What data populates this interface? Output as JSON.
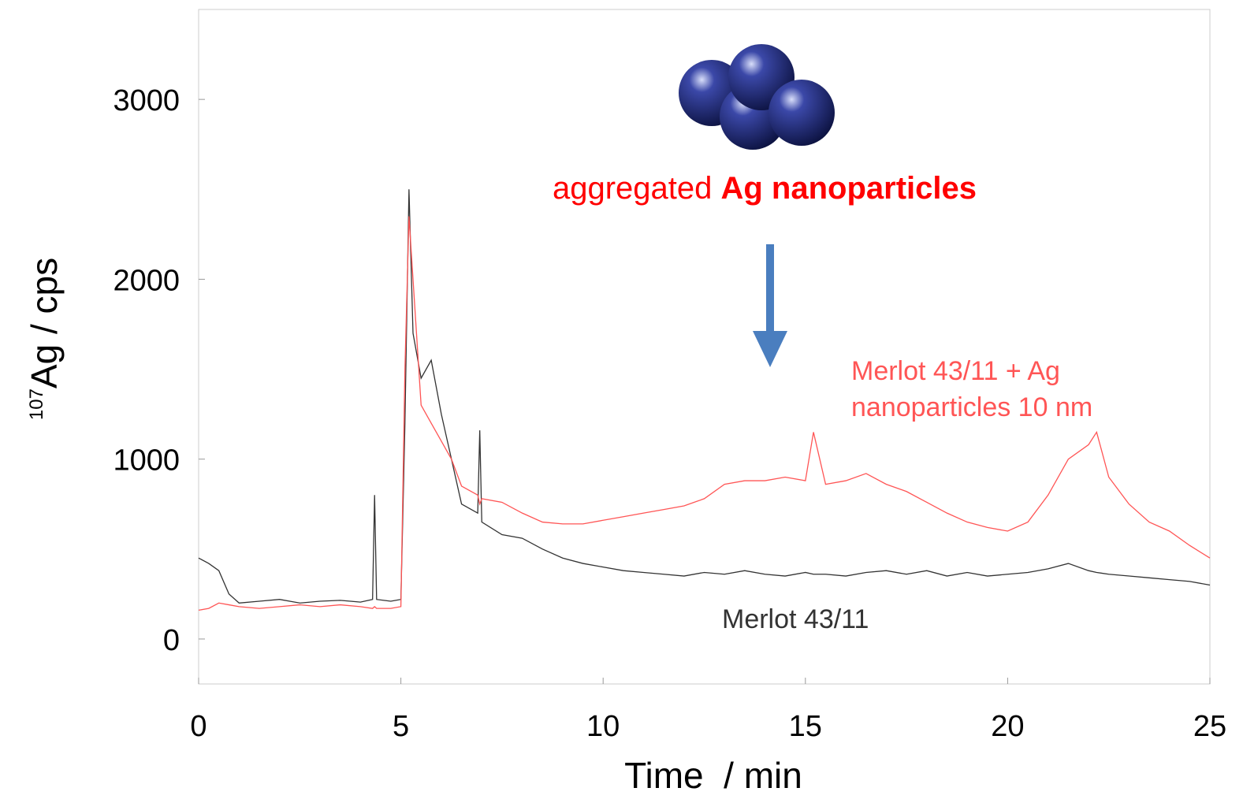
{
  "chart_data": {
    "type": "line",
    "annotation": "aggregated",
    "annotation_bold": "Ag nanoparticles",
    "x_label": "Time  / min",
    "y_label_sup": "107",
    "y_label": "Ag / cps",
    "x": [
      0,
      0.25,
      0.5,
      0.75,
      1,
      1.5,
      2,
      2.5,
      3,
      3.5,
      4,
      4.3,
      4.35,
      4.4,
      4.75,
      5,
      5.1,
      5.2,
      5.3,
      5.5,
      5.75,
      6,
      6.25,
      6.5,
      6.9,
      6.95,
      7,
      7.5,
      8,
      8.5,
      9,
      9.5,
      10,
      10.5,
      11,
      11.5,
      12,
      12.5,
      13,
      13.5,
      14,
      14.5,
      15,
      15.2,
      15.5,
      16,
      16.5,
      17,
      17.5,
      18,
      18.5,
      19,
      19.5,
      20,
      20.5,
      21,
      21.5,
      22,
      22.2,
      22.5,
      23,
      23.5,
      24,
      24.5,
      25
    ],
    "series": [
      {
        "name": "Merlot 43/11",
        "color": "#333333",
        "values": [
          450,
          420,
          380,
          250,
          200,
          210,
          220,
          200,
          210,
          215,
          205,
          220,
          800,
          220,
          210,
          220,
          1200,
          2500,
          1700,
          1450,
          1550,
          1250,
          1000,
          750,
          700,
          1160,
          650,
          580,
          560,
          500,
          450,
          420,
          400,
          380,
          370,
          360,
          350,
          370,
          360,
          380,
          360,
          350,
          370,
          360,
          360,
          350,
          370,
          380,
          360,
          380,
          350,
          370,
          350,
          360,
          370,
          390,
          420,
          380,
          370,
          360,
          350,
          340,
          330,
          320,
          300
        ]
      },
      {
        "name": "Merlot 43/11 + Ag nanoparticles 10 nm",
        "color": "#ff5555",
        "values": [
          160,
          170,
          200,
          190,
          180,
          170,
          180,
          190,
          180,
          190,
          180,
          170,
          180,
          170,
          170,
          180,
          1500,
          2350,
          2000,
          1300,
          1200,
          1100,
          1000,
          850,
          800,
          750,
          780,
          760,
          700,
          650,
          640,
          640,
          660,
          680,
          700,
          720,
          740,
          780,
          860,
          880,
          880,
          900,
          880,
          1150,
          860,
          880,
          920,
          860,
          820,
          760,
          700,
          650,
          620,
          600,
          650,
          800,
          1000,
          1080,
          1150,
          900,
          750,
          650,
          600,
          520,
          450
        ]
      }
    ],
    "xlim": [
      0,
      25
    ],
    "ylim": [
      -250,
      3500
    ],
    "xticks": [
      0,
      5,
      10,
      15,
      20,
      25
    ],
    "yticks": [
      0,
      1000,
      2000,
      3000
    ]
  }
}
